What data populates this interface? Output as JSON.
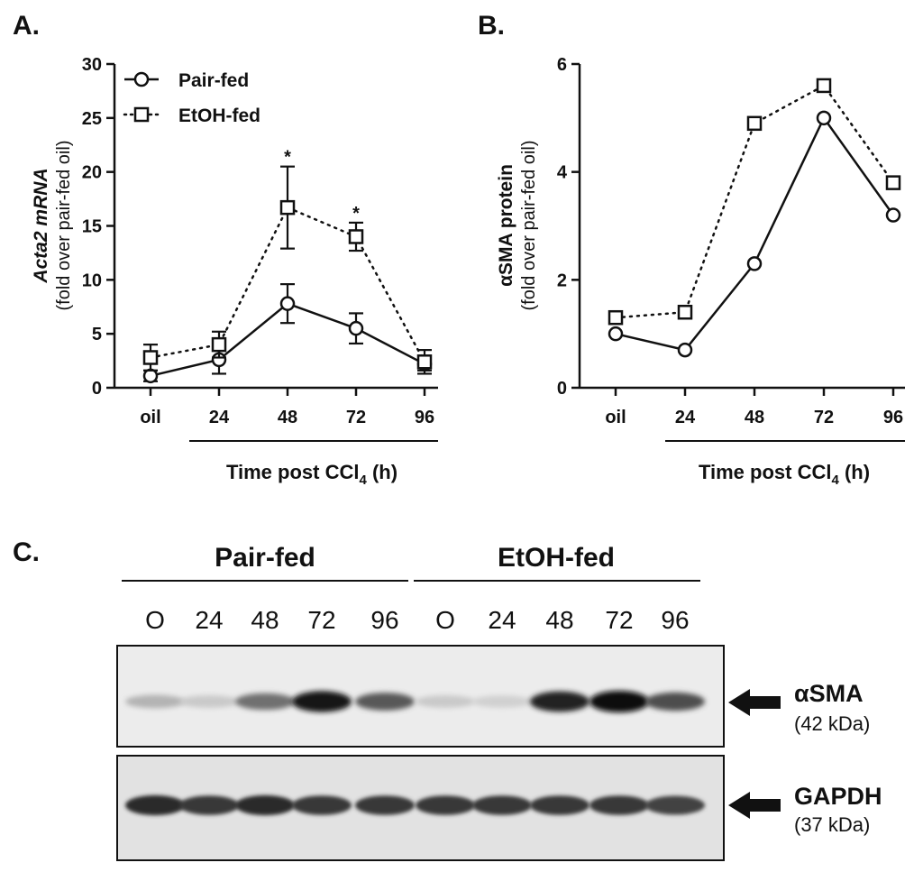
{
  "chart_data": [
    {
      "panel": "A.",
      "type": "line",
      "ylabel": "Acta2 mRNA",
      "ylabel_sub": "(fold over pair-fed oil)",
      "xlabel": "Time post CCl4 (h)",
      "categories": [
        "oil",
        "24",
        "48",
        "72",
        "96"
      ],
      "ylim": [
        0,
        30
      ],
      "yticks": [
        0,
        5,
        10,
        15,
        20,
        25,
        30
      ],
      "legend_position": "top-left",
      "series": [
        {
          "name": "Pair-fed",
          "marker": "circle",
          "line": "solid",
          "values": [
            1.1,
            2.6,
            7.8,
            5.5,
            2.2
          ],
          "errors": [
            0.5,
            1.3,
            1.8,
            1.4,
            0.6
          ]
        },
        {
          "name": "EtOH-fed",
          "marker": "square",
          "line": "dotted",
          "values": [
            2.8,
            4.0,
            16.7,
            14.0,
            2.4
          ],
          "errors": [
            1.2,
            1.2,
            3.8,
            1.3,
            1.1
          ]
        }
      ],
      "annotations": [
        {
          "text": "*",
          "category": "48"
        },
        {
          "text": "*",
          "category": "72"
        }
      ]
    },
    {
      "panel": "B.",
      "type": "line",
      "ylabel": "αSMA protein",
      "ylabel_sub": "(fold over pair-fed oil)",
      "xlabel": "Time post CCl4 (h)",
      "categories": [
        "oil",
        "24",
        "48",
        "72",
        "96"
      ],
      "ylim": [
        0,
        6
      ],
      "yticks": [
        0,
        2,
        4,
        6
      ],
      "series": [
        {
          "name": "Pair-fed",
          "marker": "circle",
          "line": "solid",
          "values": [
            1.0,
            0.7,
            2.3,
            5.0,
            3.2
          ]
        },
        {
          "name": "EtOH-fed",
          "marker": "square",
          "line": "dotted",
          "values": [
            1.3,
            1.4,
            4.9,
            5.6,
            3.8
          ]
        }
      ]
    }
  ],
  "blot": {
    "panel": "C.",
    "groups": [
      "Pair-fed",
      "EtOH-fed"
    ],
    "lanes": [
      "O",
      "24",
      "48",
      "72",
      "96",
      "O",
      "24",
      "48",
      "72",
      "96"
    ],
    "proteins": [
      {
        "name": "αSMA",
        "kda": "(42 kDa)",
        "intensity": [
          0.25,
          0.15,
          0.55,
          0.95,
          0.65,
          0.15,
          0.12,
          0.9,
          1.0,
          0.7
        ]
      },
      {
        "name": "GAPDH",
        "kda": "(37 kDa)",
        "intensity": [
          0.85,
          0.8,
          0.85,
          0.8,
          0.8,
          0.8,
          0.8,
          0.8,
          0.8,
          0.75
        ]
      }
    ]
  }
}
